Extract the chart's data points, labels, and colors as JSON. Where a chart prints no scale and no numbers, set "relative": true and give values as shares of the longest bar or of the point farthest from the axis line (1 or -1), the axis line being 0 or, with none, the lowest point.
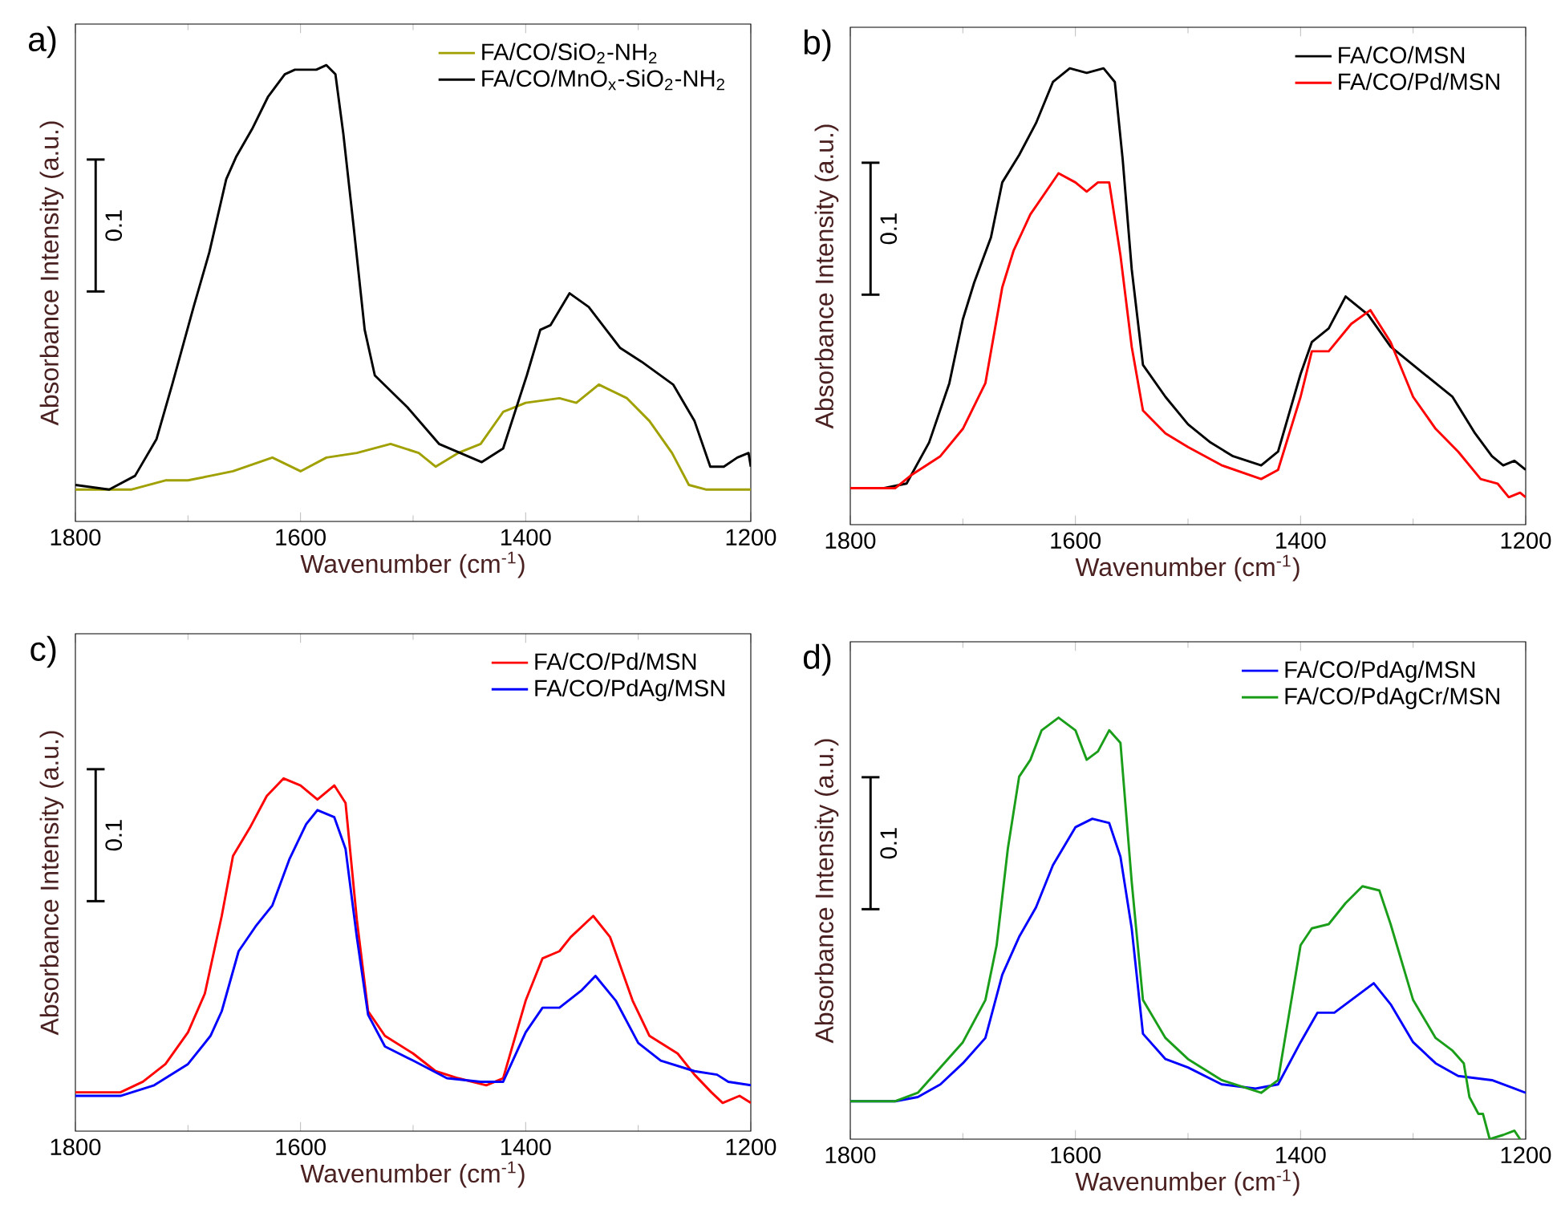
{
  "chart_data": [
    {
      "type": "line",
      "title": "a)",
      "xlabel": "Wavenumber (cm$^{-1}$)",
      "ylabel": "Absorbance Intensity (a.u.)",
      "relative": true,
      "xlim": [
        1800,
        1200
      ],
      "xticks": [
        1800,
        1600,
        1400,
        1200
      ],
      "legend": "top right",
      "annotations": [
        "0.1"
      ],
      "series": [
        {
          "name": "FA/CO/SiO$_{2}$-NH$_{2}$",
          "color": "#a0a000",
          "x": [
            1800,
            1750,
            1720,
            1700,
            1680,
            1660,
            1625,
            1600,
            1577,
            1550,
            1520,
            1495,
            1480,
            1460,
            1440,
            1420,
            1400,
            1370,
            1355,
            1335,
            1310,
            1290,
            1270,
            1255,
            1240,
            1200
          ],
          "values": [
            0.07,
            0.07,
            0.09,
            0.09,
            0.1,
            0.11,
            0.14,
            0.11,
            0.14,
            0.15,
            0.17,
            0.15,
            0.12,
            0.15,
            0.17,
            0.24,
            0.26,
            0.27,
            0.26,
            0.3,
            0.27,
            0.22,
            0.15,
            0.08,
            0.07,
            0.07
          ]
        },
        {
          "name": "FA/CO/MnO$_{x}$-SiO$_{2}$-NH$_{2}$",
          "color": "#000000",
          "x": [
            1800,
            1770,
            1747,
            1728,
            1714,
            1695,
            1681,
            1666,
            1657,
            1643,
            1629,
            1614,
            1605,
            1586,
            1577,
            1569,
            1562,
            1553,
            1543,
            1534,
            1505,
            1477,
            1439,
            1420,
            1399,
            1387,
            1378,
            1361,
            1344,
            1316,
            1297,
            1269,
            1250,
            1236,
            1224,
            1212,
            1202,
            1200
          ],
          "values": [
            0.08,
            0.07,
            0.1,
            0.18,
            0.3,
            0.47,
            0.59,
            0.75,
            0.8,
            0.86,
            0.93,
            0.98,
            0.99,
            0.99,
            1,
            0.98,
            0.85,
            0.65,
            0.42,
            0.32,
            0.25,
            0.17,
            0.13,
            0.16,
            0.32,
            0.42,
            0.43,
            0.5,
            0.47,
            0.38,
            0.35,
            0.3,
            0.22,
            0.12,
            0.12,
            0.14,
            0.15,
            0.12
          ]
        }
      ]
    },
    {
      "type": "line",
      "title": "b)",
      "xlabel": "Wavenumber (cm$^{-1}$)",
      "ylabel": "Absorbance Intensity (a.u.)",
      "relative": true,
      "xlim": [
        1800,
        1200
      ],
      "xticks": [
        1800,
        1600,
        1400,
        1200
      ],
      "legend": "top right",
      "annotations": [
        "0.1"
      ],
      "series": [
        {
          "name": "FA/CO/MSN",
          "color": "#000000",
          "x": [
            1800,
            1770,
            1750,
            1730,
            1712,
            1700,
            1690,
            1675,
            1665,
            1650,
            1635,
            1620,
            1605,
            1590,
            1575,
            1565,
            1558,
            1550,
            1540,
            1520,
            1500,
            1480,
            1460,
            1435,
            1420,
            1400,
            1390,
            1375,
            1360,
            1340,
            1320,
            1290,
            1265,
            1245,
            1230,
            1220,
            1210,
            1200
          ],
          "values": [
            0.08,
            0.08,
            0.09,
            0.18,
            0.31,
            0.45,
            0.53,
            0.63,
            0.75,
            0.81,
            0.88,
            0.97,
            1,
            0.99,
            1,
            0.97,
            0.8,
            0.56,
            0.35,
            0.28,
            0.22,
            0.18,
            0.15,
            0.13,
            0.16,
            0.33,
            0.4,
            0.43,
            0.5,
            0.46,
            0.39,
            0.33,
            0.28,
            0.2,
            0.15,
            0.13,
            0.14,
            0.12
          ]
        },
        {
          "name": "FA/CO/Pd/MSN",
          "color": "#ff0000",
          "x": [
            1800,
            1760,
            1745,
            1720,
            1700,
            1680,
            1665,
            1655,
            1640,
            1615,
            1600,
            1590,
            1580,
            1570,
            1560,
            1550,
            1540,
            1520,
            1500,
            1470,
            1435,
            1420,
            1400,
            1390,
            1375,
            1355,
            1338,
            1320,
            1300,
            1280,
            1260,
            1240,
            1225,
            1215,
            1205,
            1200
          ],
          "values": [
            0.08,
            0.08,
            0.11,
            0.15,
            0.21,
            0.31,
            0.52,
            0.6,
            0.68,
            0.77,
            0.75,
            0.73,
            0.75,
            0.75,
            0.59,
            0.39,
            0.25,
            0.2,
            0.17,
            0.13,
            0.1,
            0.12,
            0.28,
            0.38,
            0.38,
            0.44,
            0.47,
            0.4,
            0.28,
            0.21,
            0.16,
            0.1,
            0.09,
            0.06,
            0.07,
            0.06
          ]
        }
      ]
    },
    {
      "type": "line",
      "title": "c)",
      "xlabel": "Wavenumber (cm$^{-1}$)",
      "ylabel": "Absorbance Intensity (a.u.)",
      "relative": true,
      "xlim": [
        1800,
        1200
      ],
      "xticks": [
        1800,
        1600,
        1400,
        1200
      ],
      "legend": "top right",
      "annotations": [
        "0.1"
      ],
      "series": [
        {
          "name": "FA/CO/Pd/MSN",
          "color": "#ff0000",
          "x": [
            1800,
            1760,
            1740,
            1720,
            1700,
            1685,
            1670,
            1660,
            1645,
            1630,
            1615,
            1600,
            1585,
            1570,
            1560,
            1550,
            1540,
            1525,
            1500,
            1480,
            1460,
            1435,
            1420,
            1400,
            1385,
            1370,
            1360,
            1340,
            1325,
            1305,
            1290,
            1265,
            1250,
            1235,
            1225,
            1210,
            1200
          ],
          "values": [
            0.11,
            0.11,
            0.14,
            0.19,
            0.28,
            0.39,
            0.61,
            0.78,
            0.86,
            0.95,
            1,
            0.98,
            0.94,
            0.98,
            0.93,
            0.6,
            0.34,
            0.27,
            0.22,
            0.17,
            0.15,
            0.13,
            0.15,
            0.37,
            0.49,
            0.51,
            0.55,
            0.61,
            0.55,
            0.37,
            0.27,
            0.22,
            0.16,
            0.11,
            0.08,
            0.1,
            0.08
          ]
        },
        {
          "name": "FA/CO/PdAg/MSN",
          "color": "#0000ff",
          "x": [
            1800,
            1760,
            1730,
            1700,
            1680,
            1670,
            1655,
            1640,
            1625,
            1610,
            1595,
            1585,
            1570,
            1560,
            1550,
            1540,
            1525,
            1500,
            1470,
            1440,
            1420,
            1400,
            1385,
            1370,
            1350,
            1338,
            1320,
            1300,
            1280,
            1250,
            1230,
            1220,
            1200
          ],
          "values": [
            0.1,
            0.1,
            0.13,
            0.19,
            0.27,
            0.34,
            0.51,
            0.58,
            0.64,
            0.77,
            0.87,
            0.91,
            0.89,
            0.8,
            0.55,
            0.33,
            0.24,
            0.2,
            0.15,
            0.14,
            0.14,
            0.28,
            0.35,
            0.35,
            0.4,
            0.44,
            0.37,
            0.25,
            0.2,
            0.17,
            0.16,
            0.14,
            0.13
          ]
        }
      ]
    },
    {
      "type": "line",
      "title": "d)",
      "xlabel": "Wavenumber (cm$^{-1}$)",
      "ylabel": "Absorbance Intensity (a.u.)",
      "relative": true,
      "xlim": [
        1800,
        1200
      ],
      "xticks": [
        1800,
        1600,
        1400,
        1200
      ],
      "legend": "top right",
      "annotations": [
        "0.1"
      ],
      "series": [
        {
          "name": "FA/CO/PdAg/MSN",
          "color": "#0000ff",
          "x": [
            1800,
            1760,
            1740,
            1720,
            1700,
            1680,
            1665,
            1650,
            1635,
            1620,
            1600,
            1585,
            1570,
            1560,
            1550,
            1540,
            1520,
            1500,
            1470,
            1440,
            1420,
            1400,
            1385,
            1370,
            1350,
            1335,
            1320,
            1300,
            1280,
            1260,
            1230,
            1220,
            1210,
            1200
          ],
          "values": [
            0.09,
            0.09,
            0.1,
            0.13,
            0.18,
            0.24,
            0.39,
            0.48,
            0.55,
            0.65,
            0.74,
            0.76,
            0.75,
            0.67,
            0.5,
            0.25,
            0.19,
            0.17,
            0.13,
            0.12,
            0.13,
            0.23,
            0.3,
            0.3,
            0.34,
            0.37,
            0.32,
            0.23,
            0.18,
            0.15,
            0.14,
            0.13,
            0.12,
            0.11
          ]
        },
        {
          "name": "FA/CO/PdAgCr/MSN",
          "color": "#1a9e1a",
          "x": [
            1800,
            1760,
            1740,
            1720,
            1700,
            1680,
            1670,
            1660,
            1650,
            1640,
            1630,
            1615,
            1600,
            1590,
            1580,
            1570,
            1560,
            1550,
            1540,
            1520,
            1500,
            1470,
            1435,
            1420,
            1400,
            1390,
            1375,
            1360,
            1345,
            1330,
            1320,
            1300,
            1280,
            1265,
            1255,
            1250,
            1242,
            1238,
            1232,
            1220,
            1210,
            1205
          ],
          "values": [
            0.09,
            0.09,
            0.11,
            0.17,
            0.23,
            0.33,
            0.46,
            0.69,
            0.86,
            0.9,
            0.97,
            1,
            0.97,
            0.9,
            0.92,
            0.97,
            0.94,
            0.61,
            0.33,
            0.24,
            0.19,
            0.14,
            0.11,
            0.14,
            0.46,
            0.5,
            0.51,
            0.56,
            0.6,
            0.59,
            0.51,
            0.33,
            0.24,
            0.21,
            0.18,
            0.1,
            0.06,
            0.06,
            0,
            0.01,
            0.02,
            0
          ]
        }
      ]
    }
  ]
}
